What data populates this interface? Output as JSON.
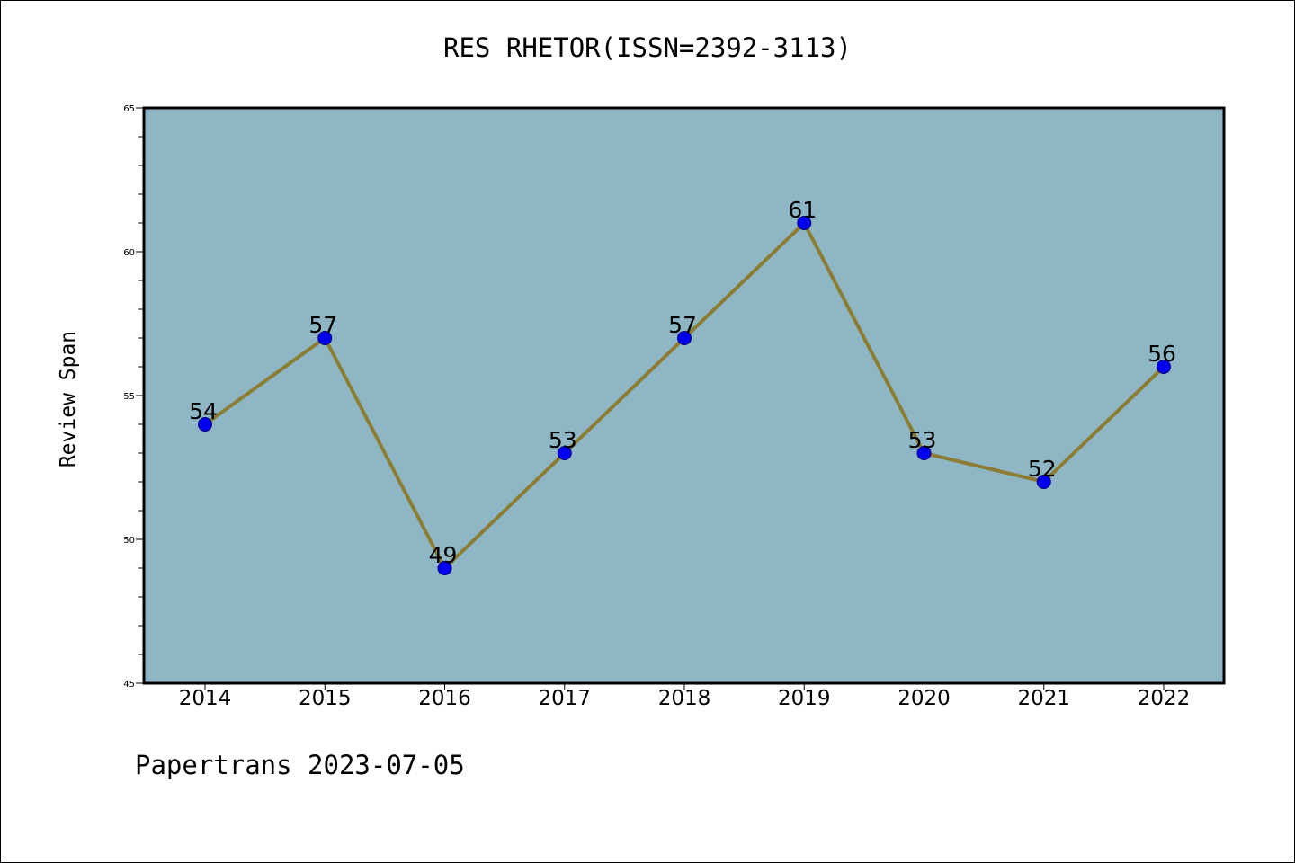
{
  "chart_data": {
    "type": "line",
    "title": "RES RHETOR(ISSN=2392-3113)",
    "xlabel": "",
    "ylabel": "Review Span",
    "categories": [
      "2014",
      "2015",
      "2016",
      "2017",
      "2018",
      "2019",
      "2020",
      "2021",
      "2022"
    ],
    "series": [
      {
        "values": [
          54,
          57,
          49,
          53,
          57,
          61,
          53,
          52,
          56
        ]
      }
    ],
    "ylim": [
      45,
      65
    ],
    "yticks": [
      45,
      50,
      55,
      60,
      65
    ],
    "grid": false,
    "legend": "none"
  },
  "footer": {
    "text": "Papertrans 2023-07-05"
  },
  "colors": {
    "plot_background": "#8fb6c4",
    "line": "#8b7d34",
    "marker_fill": "#0000ee",
    "marker_edge": "#00007a"
  }
}
